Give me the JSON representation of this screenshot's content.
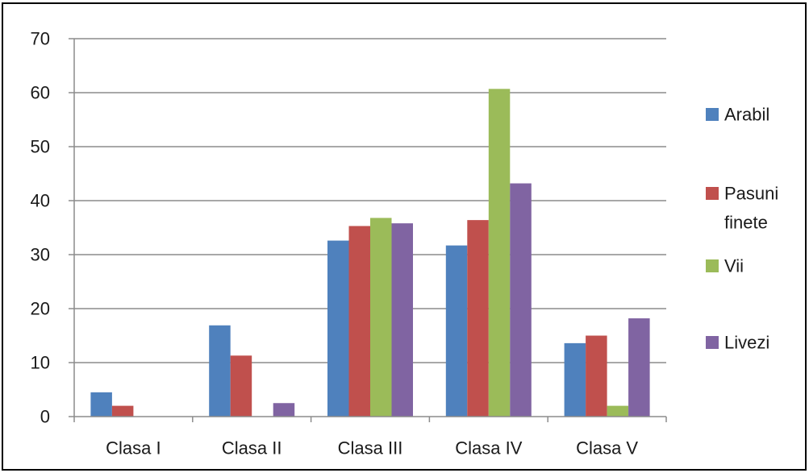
{
  "chart_data": {
    "type": "bar",
    "title": "",
    "xlabel": "",
    "ylabel": "",
    "categories": [
      "Clasa I",
      "Clasa II",
      "Clasa III",
      "Clasa IV",
      "Clasa V"
    ],
    "series": [
      {
        "name": "Arabil",
        "color": "#4f81bd",
        "values": [
          4.5,
          16.9,
          32.6,
          31.7,
          13.6
        ]
      },
      {
        "name": "Pasuni finete",
        "color": "#c0504d",
        "values": [
          2.0,
          11.3,
          35.3,
          36.4,
          15.0
        ]
      },
      {
        "name": "Vii",
        "color": "#9bbb59",
        "values": [
          0,
          0,
          36.8,
          60.7,
          2.0
        ]
      },
      {
        "name": "Livezi",
        "color": "#8064a2",
        "values": [
          0,
          2.5,
          35.8,
          43.2,
          18.2
        ]
      }
    ],
    "ylim": [
      0,
      70
    ],
    "yticks": [
      0,
      10,
      20,
      30,
      40,
      50,
      60,
      70
    ],
    "grid": true,
    "legend": {
      "position": "right",
      "entries": [
        {
          "lines": [
            "Arabil"
          ]
        },
        {
          "lines": [
            "Pasuni",
            "finete"
          ]
        },
        {
          "lines": [
            "Vii"
          ]
        },
        {
          "lines": [
            "Livezi"
          ]
        }
      ]
    }
  }
}
